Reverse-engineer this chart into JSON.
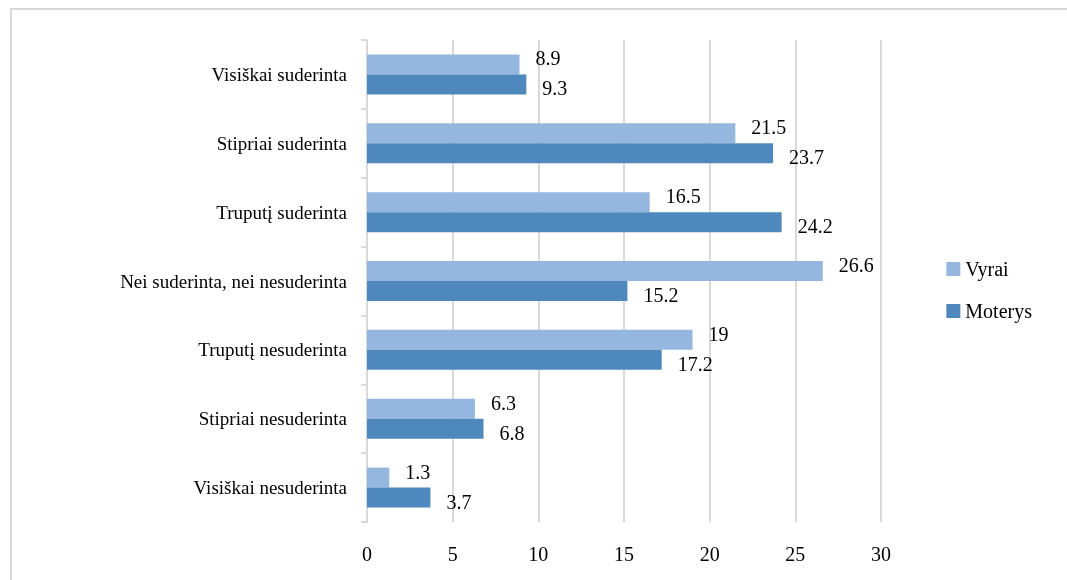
{
  "chart_data": {
    "type": "bar",
    "orientation": "horizontal",
    "categories": [
      "Visiškai suderinta",
      "Stipriai suderinta",
      "Truputį suderinta",
      "Nei suderinta, nei nesuderinta",
      "Truputį nesuderinta",
      "Stipriai nesuderinta",
      "Visiškai nesuderinta"
    ],
    "series": [
      {
        "name": "Vyrai",
        "color": "#95b7df",
        "values": [
          8.9,
          21.5,
          16.5,
          26.6,
          19,
          6.3,
          1.3
        ]
      },
      {
        "name": "Moterys",
        "color": "#4f88bd",
        "values": [
          9.3,
          23.7,
          24.2,
          15.2,
          17.2,
          6.8,
          3.7
        ]
      }
    ],
    "xlim": [
      0,
      30
    ],
    "xticks": [
      0,
      5,
      10,
      15,
      20,
      25,
      30
    ],
    "grid": "x",
    "legend": "right",
    "data_labels": true
  }
}
